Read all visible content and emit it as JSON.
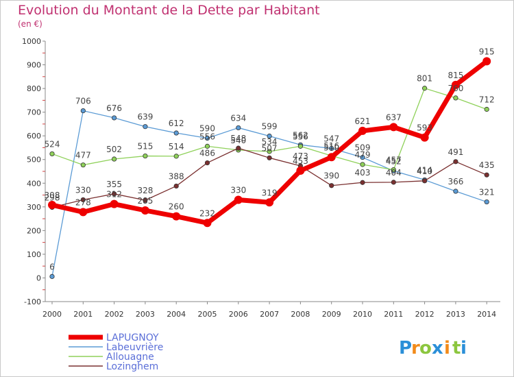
{
  "title": "Evolution du Montant de la Dette par Habitant",
  "unit": "(en €)",
  "logo": {
    "letters": [
      "P",
      "r",
      "o",
      "x",
      "i",
      "t",
      "i"
    ],
    "colors": [
      "#2b8fd8",
      "#f28b1a",
      "#8cc63f",
      "#2b8fd8",
      "#f28b1a",
      "#8cc63f",
      "#2b8fd8"
    ]
  },
  "chart_data": {
    "type": "line",
    "x": [
      "2000",
      "2001",
      "2002",
      "2003",
      "2004",
      "2005",
      "2006",
      "2007",
      "2008",
      "2009",
      "2010",
      "2011",
      "2012",
      "2013",
      "2014"
    ],
    "ylim": [
      -100,
      1000
    ],
    "yticks": [
      "-100",
      "0",
      "100",
      "200",
      "300",
      "400",
      "500",
      "600",
      "700",
      "800",
      "900",
      "1000"
    ],
    "grid": false,
    "legend_placement": "bottom-left",
    "series": [
      {
        "name": "Labeuvrière",
        "color": "#5b9bd5",
        "values": [
          6,
          706,
          676,
          639,
          612,
          590,
          634,
          599,
          562,
          547,
          509,
          452,
          414,
          366,
          321
        ],
        "labels": [
          "6",
          "706",
          "676",
          "639",
          "612",
          "590",
          "634",
          "599",
          "562",
          "547",
          "509",
          "452",
          "414",
          "366",
          "321"
        ]
      },
      {
        "name": "Allouagne",
        "color": "#8fd15a",
        "values": [
          524,
          477,
          502,
          515,
          514,
          556,
          540,
          534,
          556,
          516,
          479,
          457,
          801,
          760,
          712
        ],
        "labels": [
          "524",
          "477",
          "502",
          "515",
          "514",
          "556",
          "540",
          "534",
          "556",
          "516",
          "479",
          "457",
          "801",
          "760",
          "712"
        ]
      },
      {
        "name": "Lozinghem",
        "color": "#7a3030",
        "values": [
          298,
          330,
          355,
          328,
          388,
          486,
          548,
          507,
          473,
          390,
          403,
          404,
          410,
          491,
          435
        ],
        "labels": [
          "298",
          "330",
          "355",
          "328",
          "388",
          "486",
          "548",
          "507",
          "473",
          "390",
          "403",
          "404",
          "410",
          "491",
          "435"
        ]
      },
      {
        "name": "LAPUGNOY",
        "color": "#ee0000",
        "values": [
          308,
          278,
          312,
          285,
          260,
          232,
          330,
          319,
          453,
          510,
          621,
          637,
          593,
          815,
          915
        ],
        "labels": [
          "308",
          "278",
          "312",
          "285",
          "260",
          "232",
          "330",
          "319",
          "453",
          "510",
          "621",
          "637",
          "593",
          "815",
          "915"
        ]
      }
    ]
  }
}
